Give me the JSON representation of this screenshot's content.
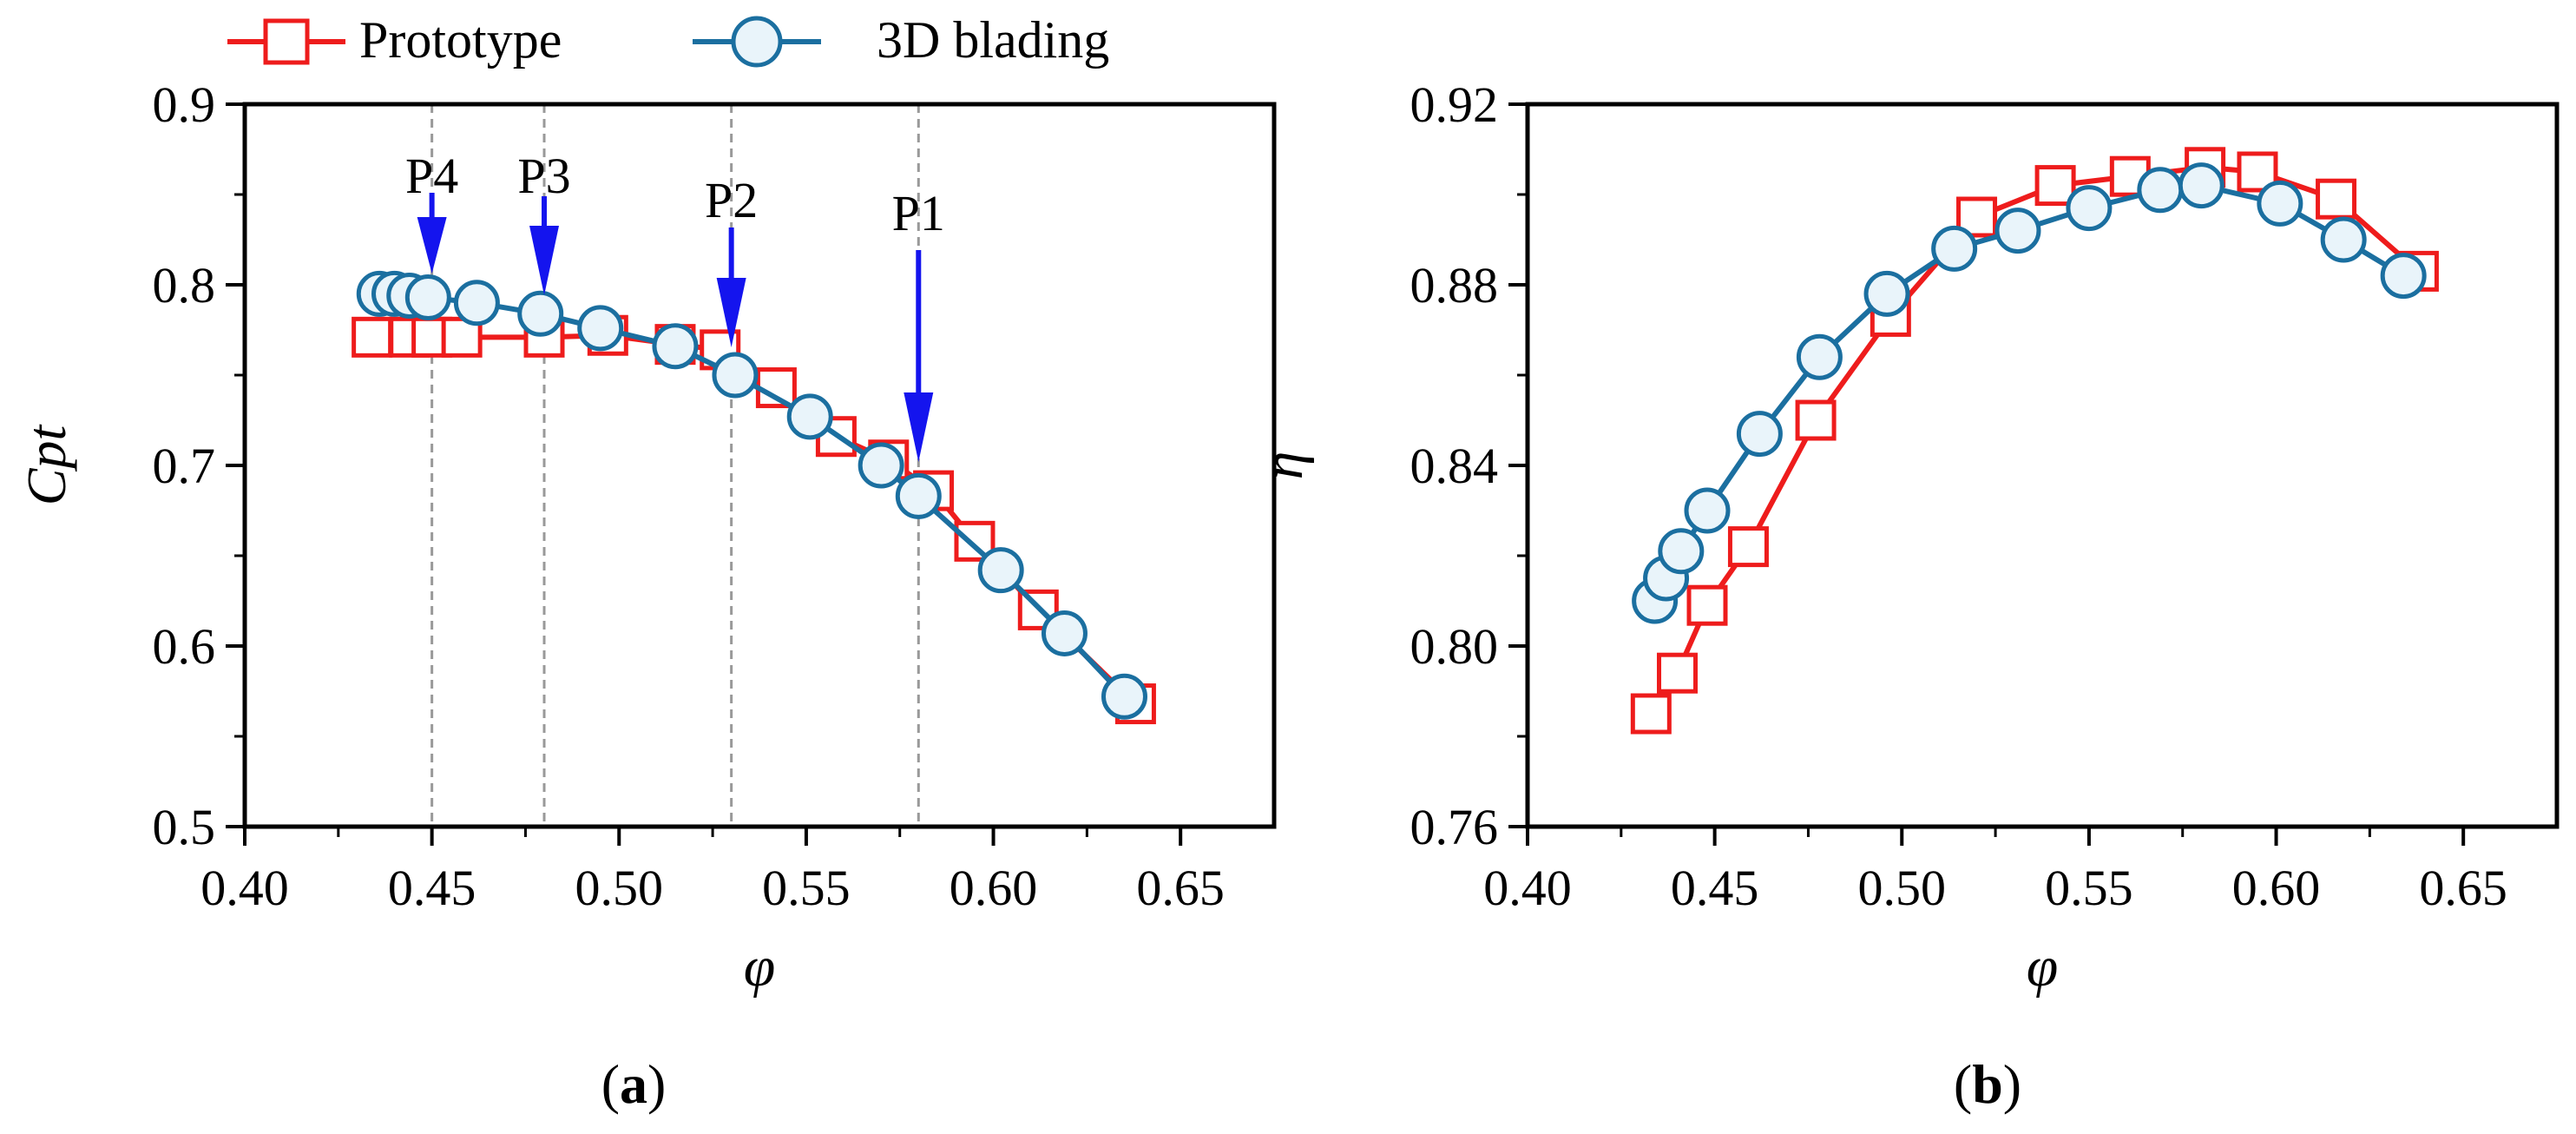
{
  "legend": {
    "entries": [
      {
        "name": "Prototype",
        "color": "#ee1c1c",
        "marker": "square"
      },
      {
        "name": "3D blading",
        "color": "#1b6fa0",
        "marker": "circle"
      }
    ],
    "placement": "top-left"
  },
  "chart_data": [
    {
      "type": "line",
      "panel_label": "(a)",
      "panel_letter": "a",
      "xlabel": "φ",
      "ylabel": "Cpt",
      "xlim": [
        0.4,
        0.675
      ],
      "ylim": [
        0.5,
        0.9
      ],
      "xticks": [
        0.4,
        0.45,
        0.5,
        0.55,
        0.6,
        0.65
      ],
      "xtick_labels": [
        "0.40",
        "0.45",
        "0.50",
        "0.55",
        "0.60",
        "0.65"
      ],
      "yticks": [
        0.5,
        0.6,
        0.7,
        0.8,
        0.9
      ],
      "ytick_labels": [
        "0.5",
        "0.6",
        "0.7",
        "0.8",
        "0.9"
      ],
      "series": [
        {
          "name": "Prototype",
          "x": [
            0.434,
            0.444,
            0.45,
            0.458,
            0.48,
            0.497,
            0.515,
            0.527,
            0.542,
            0.558,
            0.572,
            0.584,
            0.595,
            0.612,
            0.638
          ],
          "y": [
            0.771,
            0.771,
            0.771,
            0.771,
            0.771,
            0.772,
            0.767,
            0.764,
            0.743,
            0.716,
            0.703,
            0.686,
            0.658,
            0.62,
            0.568
          ]
        },
        {
          "name": "3D blading",
          "x": [
            0.436,
            0.44,
            0.444,
            0.449,
            0.462,
            0.479,
            0.495,
            0.515,
            0.531,
            0.551,
            0.57,
            0.58,
            0.602,
            0.619,
            0.635
          ],
          "y": [
            0.795,
            0.795,
            0.794,
            0.793,
            0.79,
            0.784,
            0.776,
            0.766,
            0.75,
            0.727,
            0.7,
            0.683,
            0.642,
            0.607,
            0.572
          ]
        }
      ],
      "vlines": [
        0.45,
        0.48,
        0.53,
        0.58
      ],
      "annotations": [
        {
          "text": "P4",
          "x": 0.45
        },
        {
          "text": "P3",
          "x": 0.48
        },
        {
          "text": "P2",
          "x": 0.53
        },
        {
          "text": "P1",
          "x": 0.58
        }
      ]
    },
    {
      "type": "line",
      "panel_label": "(b)",
      "panel_letter": "b",
      "xlabel": "φ",
      "ylabel": "η",
      "xlim": [
        0.4,
        0.675
      ],
      "ylim": [
        0.76,
        0.92
      ],
      "xticks": [
        0.4,
        0.45,
        0.5,
        0.55,
        0.6,
        0.65
      ],
      "xtick_labels": [
        "0.40",
        "0.45",
        "0.50",
        "0.55",
        "0.60",
        "0.65"
      ],
      "yticks": [
        0.76,
        0.8,
        0.84,
        0.88,
        0.92
      ],
      "ytick_labels": [
        "0.76",
        "0.80",
        "0.84",
        "0.88",
        "0.92"
      ],
      "series": [
        {
          "name": "Prototype",
          "x": [
            0.433,
            0.44,
            0.448,
            0.459,
            0.477,
            0.497,
            0.52,
            0.541,
            0.561,
            0.581,
            0.595,
            0.616,
            0.638
          ],
          "y": [
            0.785,
            0.794,
            0.809,
            0.822,
            0.85,
            0.873,
            0.895,
            0.902,
            0.904,
            0.906,
            0.905,
            0.899,
            0.883
          ]
        },
        {
          "name": "3D blading",
          "x": [
            0.434,
            0.437,
            0.441,
            0.448,
            0.462,
            0.478,
            0.496,
            0.514,
            0.531,
            0.55,
            0.569,
            0.58,
            0.601,
            0.618,
            0.634
          ],
          "y": [
            0.81,
            0.815,
            0.821,
            0.83,
            0.847,
            0.864,
            0.878,
            0.888,
            0.892,
            0.897,
            0.901,
            0.902,
            0.898,
            0.89,
            0.882
          ]
        }
      ]
    }
  ]
}
